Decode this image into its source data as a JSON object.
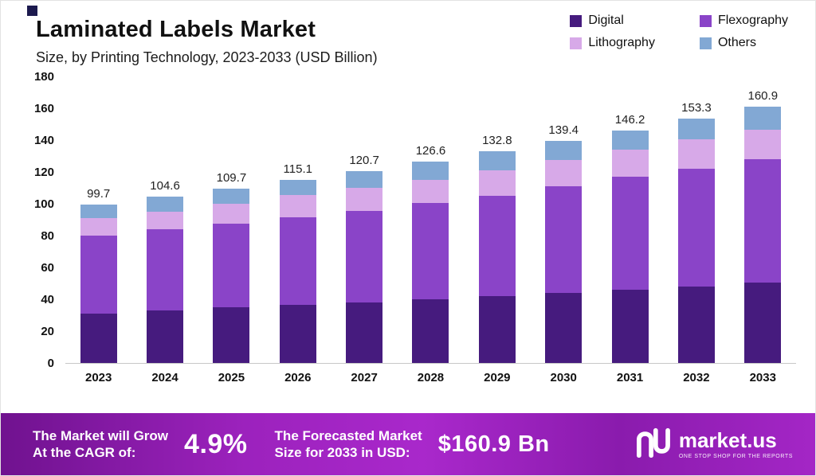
{
  "header": {
    "title": "Laminated Labels Market",
    "subtitle": "Size, by Printing Technology, 2023-2033 (USD Billion)"
  },
  "chart_data": {
    "type": "bar",
    "stacked": true,
    "title": "Laminated Labels Market",
    "subtitle": "Size, by Printing Technology, 2023-2033 (USD Billion)",
    "xlabel": "",
    "ylabel": "",
    "ylim": [
      0,
      180
    ],
    "ytick_step": 20,
    "grid": false,
    "legend_position": "top-right",
    "categories": [
      "2023",
      "2024",
      "2025",
      "2026",
      "2027",
      "2028",
      "2029",
      "2030",
      "2031",
      "2032",
      "2033"
    ],
    "series": [
      {
        "name": "Digital",
        "color": "#461b7e",
        "values": [
          31,
          33,
          35,
          36.5,
          38,
          40,
          42,
          44,
          46,
          48,
          50.5
        ]
      },
      {
        "name": "Flexography",
        "color": "#8a44c8",
        "values": [
          49,
          51,
          52.5,
          55,
          57.5,
          60.5,
          63,
          67,
          71,
          74,
          77.5
        ]
      },
      {
        "name": "Lithography",
        "color": "#d7a9e8",
        "values": [
          11,
          11,
          12.5,
          14,
          14.5,
          14.5,
          16,
          16.5,
          17,
          18.5,
          18.5
        ]
      },
      {
        "name": "Others",
        "color": "#82a8d4",
        "values": [
          8.7,
          9.6,
          9.7,
          9.6,
          10.7,
          11.6,
          11.8,
          11.9,
          12.2,
          12.8,
          14.4
        ]
      }
    ],
    "totals": [
      "99.7",
      "104.6",
      "109.7",
      "115.1",
      "120.7",
      "126.6",
      "132.8",
      "139.4",
      "146.2",
      "153.3",
      "160.9"
    ]
  },
  "banner": {
    "growth_label_line1": "The Market will Grow",
    "growth_label_line2": "At the CAGR of:",
    "cagr_value": "4.9%",
    "forecast_label_line1": "The Forecasted Market",
    "forecast_label_line2": "Size for 2033 in USD:",
    "forecast_value": "$160.9 Bn",
    "logo_text": "market.us",
    "logo_tagline": "ONE STOP SHOP FOR THE REPORTS"
  }
}
